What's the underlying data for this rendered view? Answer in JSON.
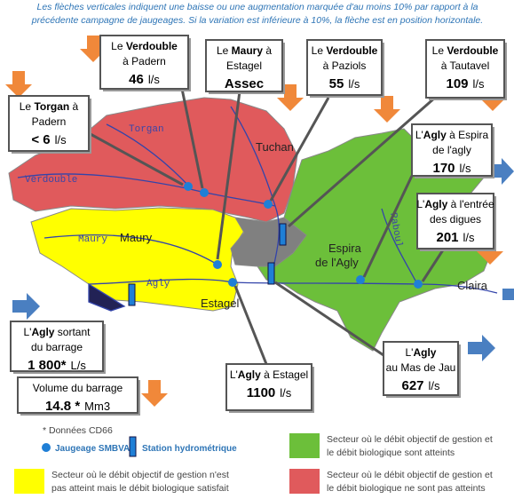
{
  "header": [
    "Les flèches verticales indiquent une baisse ou une augmentation marquée d'au moins 10% par rapport à la",
    "précédente campagne de jaugeages. Si la variation est inférieure à 10%, la flèche est en position horizontale."
  ],
  "callouts": [
    {
      "lines": [
        [
          {
            "text": "Le "
          },
          {
            "text": "Verdouble",
            "bold": true
          }
        ],
        [
          {
            "text": "à Padern"
          }
        ]
      ],
      "value": 46,
      "unit": "l/s"
    },
    {
      "lines": [
        [
          {
            "text": "Le "
          },
          {
            "text": "Maury",
            "bold": true
          },
          {
            "text": " à"
          }
        ],
        [
          {
            "text": "Estagel"
          }
        ]
      ],
      "value": "Assec"
    },
    {
      "lines": [
        [
          {
            "text": "Le "
          },
          {
            "text": "Verdouble",
            "bold": true
          }
        ],
        [
          {
            "text": "à Paziols"
          }
        ]
      ],
      "value": 55,
      "unit": "l/s"
    },
    {
      "lines": [
        [
          {
            "text": "Le "
          },
          {
            "text": "Verdouble",
            "bold": true
          }
        ],
        [
          {
            "text": "à Tautavel"
          }
        ]
      ],
      "value": 109,
      "unit": "l/s"
    },
    {
      "lines": [
        [
          {
            "text": "Le "
          },
          {
            "text": "Torgan",
            "bold": true
          },
          {
            "text": " à"
          }
        ],
        [
          {
            "text": "Padern"
          }
        ]
      ],
      "value": "< 6",
      "unit": "l/s"
    },
    {
      "lines": [
        [
          {
            "text": "L'"
          },
          {
            "text": "Agly",
            "bold": true
          },
          {
            "text": " à Espira"
          }
        ],
        [
          {
            "text": "de l'agly"
          }
        ]
      ],
      "value": 170,
      "unit": "l/s"
    },
    {
      "lines": [
        [
          {
            "text": "L'"
          },
          {
            "text": "Agly",
            "bold": true
          },
          {
            "text": " à l'entrée"
          }
        ],
        [
          {
            "text": "des digues"
          }
        ]
      ],
      "value": 201,
      "unit": "l/s"
    },
    {
      "lines": [
        [
          {
            "text": "L'"
          },
          {
            "text": "Agly",
            "bold": true
          },
          {
            "text": "  sortant"
          }
        ],
        [
          {
            "text": "du barrage"
          }
        ]
      ],
      "value": "1 800*",
      "unit": "L/s"
    },
    {
      "lines": [
        [
          {
            "text": "Volume  du barrage"
          }
        ]
      ],
      "value": "14.8 *",
      "unit": "Mm3"
    },
    {
      "lines": [
        [
          {
            "text": "L'"
          },
          {
            "text": "Agly",
            "bold": true
          },
          {
            "text": " à Estagel"
          }
        ]
      ],
      "value": 1100,
      "unit": "l/s"
    },
    {
      "lines": [
        [
          {
            "text": "L'"
          },
          {
            "text": "Agly",
            "bold": true
          }
        ],
        [
          {
            "text": "au Mas de Jau"
          }
        ]
      ],
      "value": 627,
      "unit": "l/s"
    }
  ],
  "places": [
    "Torgan",
    "Verdouble",
    "Tuchan",
    "Maury",
    "Maury",
    "Agly",
    "Estagel",
    "Espira",
    "de l'Agly",
    "Raboul",
    "Claira"
  ],
  "legend": {
    "note": "* Données CD66",
    "gauge": "Jaugeage SMBVA",
    "station": "Station hydrométrique",
    "green": [
      "Secteur où le débit objectif de gestion et",
      "le débit biologique sont atteints"
    ],
    "yellow": [
      "Secteur où le débit objectif de gestion n'est",
      "pas atteint mais le débit biologique satisfait"
    ],
    "red": [
      "Secteur où le débit objectif de gestion et",
      "le débit biologique ne sont pas atteints"
    ]
  }
}
